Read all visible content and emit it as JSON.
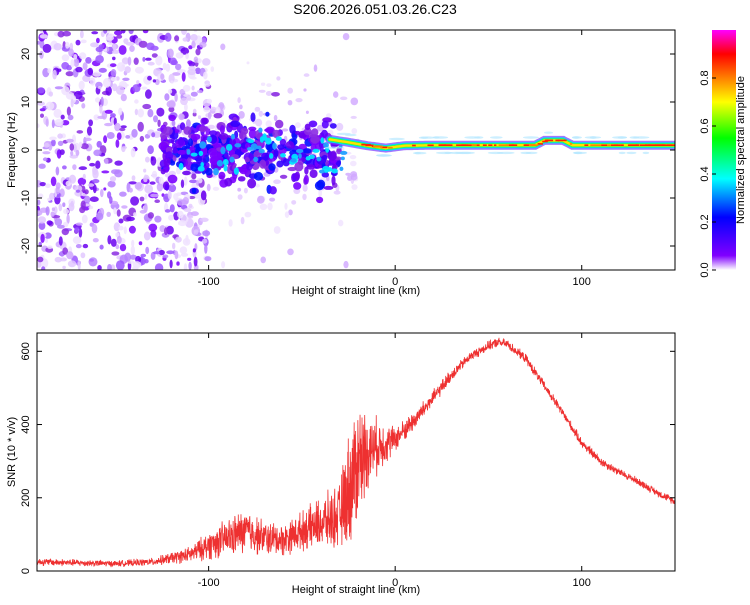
{
  "title": "S206.2026.051.03.26.C23",
  "chart_data": [
    {
      "type": "heatmap",
      "name": "spectrogram",
      "xlabel": "Height of straight line (km)",
      "ylabel": "Frequency (Hz)",
      "xlim": [
        -192,
        150
      ],
      "ylim": [
        -25,
        25
      ],
      "xticks": [
        -100,
        0,
        100
      ],
      "yticks": [
        -20,
        -10,
        0,
        10,
        20
      ],
      "xticklabels": [
        "-100",
        "0",
        "100"
      ],
      "yticklabels": [
        "-20",
        "-10",
        "0",
        "10",
        "20"
      ],
      "colorbar": {
        "label": "Normalized spectral amplitude",
        "range": [
          0,
          1
        ],
        "ticks": [
          0.0,
          0.2,
          0.4,
          0.6,
          0.8
        ],
        "ticklabels": [
          "0.0",
          "0.2",
          "0.4",
          "0.6",
          "0.8"
        ],
        "colormap": [
          "#ffffff",
          "#8000ff",
          "#0000ff",
          "#00ffff",
          "#00ff00",
          "#ffff00",
          "#ff8000",
          "#ff0000",
          "#ff00ff"
        ]
      },
      "features": {
        "noise_region_x": [
          -192,
          -120
        ],
        "scatter_cluster_x": [
          -125,
          -30
        ],
        "tone_track": {
          "x": [
            -35,
            -25,
            -15,
            -5,
            5,
            20,
            40,
            60,
            75,
            80,
            90,
            95,
            110,
            130,
            150
          ],
          "freq": [
            2.2,
            1.6,
            0.9,
            0.4,
            0.9,
            1.0,
            1.0,
            1.0,
            1.0,
            2.0,
            2.0,
            1.0,
            1.0,
            1.0,
            1.0
          ]
        }
      }
    },
    {
      "type": "line",
      "name": "snr",
      "xlabel": "Height of straight line (km)",
      "ylabel": "SNR (10 * v/v)",
      "xlim": [
        -192,
        150
      ],
      "ylim": [
        0,
        650
      ],
      "xticks": [
        -100,
        0,
        100
      ],
      "yticks": [
        0,
        200,
        400,
        600
      ],
      "xticklabels": [
        "-100",
        "0",
        "100"
      ],
      "yticklabels": [
        "0",
        "200",
        "400",
        "600"
      ],
      "color": "#ee3030",
      "envelope": {
        "x": [
          -192,
          -150,
          -130,
          -110,
          -100,
          -90,
          -80,
          -70,
          -60,
          -50,
          -40,
          -30,
          -25,
          -20,
          -15,
          -10,
          0,
          10,
          20,
          30,
          40,
          50,
          55,
          60,
          70,
          80,
          90,
          100,
          110,
          120,
          130,
          140,
          150
        ],
        "mean": [
          25,
          20,
          25,
          45,
          70,
          90,
          110,
          90,
          85,
          110,
          130,
          150,
          220,
          300,
          330,
          340,
          360,
          410,
          470,
          535,
          585,
          615,
          625,
          620,
          580,
          505,
          430,
          350,
          300,
          270,
          245,
          215,
          190
        ],
        "spread": [
          12,
          10,
          12,
          25,
          45,
          60,
          70,
          55,
          50,
          60,
          80,
          100,
          180,
          200,
          120,
          90,
          40,
          30,
          25,
          20,
          15,
          15,
          15,
          15,
          15,
          15,
          15,
          15,
          15,
          12,
          12,
          12,
          12
        ]
      }
    }
  ]
}
